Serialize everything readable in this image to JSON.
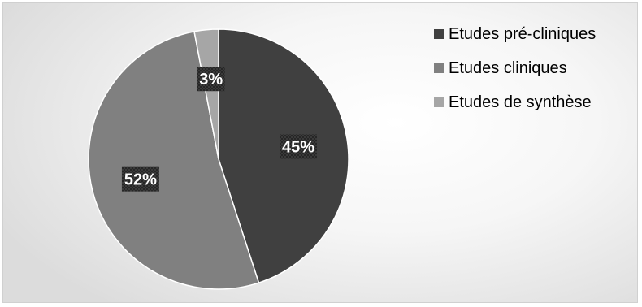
{
  "chart_data": {
    "type": "pie",
    "categories": [
      "Etudes pré-cliniques",
      "Etudes cliniques",
      "Etudes de synthèse"
    ],
    "values": [
      45,
      52,
      3
    ],
    "data_labels": [
      "45%",
      "52%",
      "3%"
    ],
    "colors": [
      "#404040",
      "#808080",
      "#a6a6a6"
    ],
    "start_angle_deg": 0,
    "direction": "clockwise",
    "legend_position": "right",
    "title": ""
  }
}
